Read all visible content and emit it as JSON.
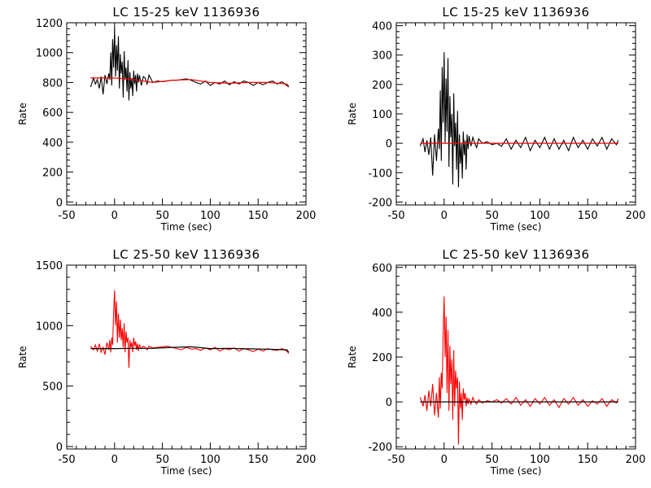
{
  "chart_data": [
    {
      "type": "line",
      "title": "LC 15-25 keV  1136936",
      "xlabel": "Time (sec)",
      "ylabel": "Rate",
      "xlim": [
        -50,
        200
      ],
      "ylim": [
        -20,
        1200
      ],
      "xticks": [
        -50,
        0,
        50,
        100,
        150,
        200
      ],
      "yticks": [
        0,
        200,
        400,
        600,
        800,
        1000,
        1200
      ],
      "grid": false,
      "data_color": "#000000",
      "model_color": "#ff0000",
      "series": [
        {
          "role": "data",
          "x": [
            -25,
            -22,
            -20,
            -18,
            -16,
            -14,
            -12,
            -10,
            -8,
            -6,
            -5,
            -4,
            -3,
            -2,
            -1,
            0,
            1,
            2,
            3,
            4,
            5,
            6,
            7,
            8,
            9,
            10,
            11,
            12,
            13,
            14,
            15,
            16,
            17,
            18,
            19,
            20,
            21,
            22,
            23,
            24,
            25,
            26,
            28,
            30,
            32,
            34,
            36,
            40,
            45,
            50,
            55,
            60,
            65,
            70,
            75,
            80,
            85,
            90,
            95,
            100,
            105,
            110,
            115,
            120,
            125,
            130,
            135,
            140,
            145,
            150,
            155,
            160,
            165,
            170,
            175,
            180,
            182
          ],
          "y": [
            770,
            830,
            790,
            820,
            760,
            840,
            720,
            850,
            790,
            860,
            820,
            1000,
            780,
            1090,
            900,
            1160,
            840,
            1050,
            880,
            1110,
            760,
            990,
            860,
            940,
            700,
            1010,
            820,
            900,
            740,
            950,
            680,
            870,
            760,
            830,
            710,
            880,
            790,
            850,
            740,
            860,
            800,
            850,
            780,
            840,
            830,
            790,
            850,
            800,
            810,
            805,
            810,
            815,
            815,
            820,
            825,
            815,
            800,
            790,
            810,
            780,
            800,
            790,
            810,
            785,
            805,
            790,
            810,
            800,
            780,
            800,
            785,
            800,
            810,
            790,
            805,
            780,
            770
          ]
        },
        {
          "role": "model",
          "x": [
            -25,
            0,
            20,
            40,
            60,
            80,
            100,
            120,
            140,
            160,
            180,
            182
          ],
          "y": [
            830,
            830,
            820,
            800,
            815,
            820,
            800,
            795,
            800,
            800,
            790,
            775
          ]
        }
      ]
    },
    {
      "type": "line",
      "title": "LC 15-25 keV  1136936",
      "xlabel": "Time (sec)",
      "ylabel": "Rate",
      "xlim": [
        -50,
        200
      ],
      "ylim": [
        -210,
        410
      ],
      "xticks": [
        -50,
        0,
        50,
        100,
        150,
        200
      ],
      "yticks": [
        -200,
        -100,
        0,
        100,
        200,
        300,
        400
      ],
      "grid": false,
      "data_color": "#000000",
      "model_color": "#ff0000",
      "series": [
        {
          "role": "data",
          "x": [
            -25,
            -22,
            -20,
            -18,
            -16,
            -14,
            -12,
            -10,
            -8,
            -6,
            -5,
            -4,
            -3,
            -2,
            -1,
            0,
            1,
            2,
            3,
            4,
            5,
            6,
            7,
            8,
            9,
            10,
            11,
            12,
            13,
            14,
            15,
            16,
            17,
            18,
            19,
            20,
            21,
            22,
            23,
            24,
            25,
            26,
            28,
            30,
            32,
            34,
            36,
            40,
            45,
            50,
            55,
            60,
            65,
            70,
            75,
            80,
            85,
            90,
            95,
            100,
            105,
            110,
            115,
            120,
            125,
            130,
            135,
            140,
            145,
            150,
            155,
            160,
            165,
            170,
            175,
            180,
            182
          ],
          "y": [
            -10,
            15,
            -30,
            10,
            -40,
            20,
            -110,
            30,
            -60,
            50,
            -20,
            180,
            -60,
            260,
            70,
            310,
            0,
            220,
            40,
            290,
            -80,
            160,
            20,
            100,
            -140,
            170,
            -10,
            70,
            -90,
            110,
            -150,
            30,
            -70,
            0,
            -120,
            40,
            -40,
            10,
            -90,
            30,
            -20,
            25,
            -10,
            20,
            0,
            -15,
            15,
            0,
            5,
            -5,
            0,
            -10,
            15,
            -20,
            10,
            -15,
            20,
            -25,
            10,
            -15,
            20,
            -20,
            15,
            -20,
            10,
            -25,
            20,
            -15,
            10,
            -20,
            15,
            -10,
            20,
            -20,
            15,
            -5,
            10
          ]
        },
        {
          "role": "model",
          "x": [
            -25,
            182
          ],
          "y": [
            0,
            0
          ]
        }
      ]
    },
    {
      "type": "line",
      "title": "LC 25-50 keV  1136936",
      "xlabel": "Time (sec)",
      "ylabel": "Rate",
      "xlim": [
        -50,
        200
      ],
      "ylim": [
        -20,
        1500
      ],
      "xticks": [
        -50,
        0,
        50,
        100,
        150,
        200
      ],
      "yticks": [
        0,
        500,
        1000,
        1500
      ],
      "grid": false,
      "data_color": "#ff0000",
      "model_color": "#000000",
      "series": [
        {
          "role": "data",
          "x": [
            -25,
            -22,
            -20,
            -18,
            -16,
            -14,
            -12,
            -10,
            -8,
            -6,
            -5,
            -4,
            -3,
            -2,
            -1,
            0,
            1,
            2,
            3,
            4,
            5,
            6,
            7,
            8,
            9,
            10,
            11,
            12,
            13,
            14,
            15,
            16,
            17,
            18,
            19,
            20,
            21,
            22,
            23,
            24,
            25,
            26,
            28,
            30,
            32,
            34,
            36,
            40,
            45,
            50,
            55,
            60,
            65,
            70,
            75,
            80,
            85,
            90,
            95,
            100,
            105,
            110,
            115,
            120,
            125,
            130,
            135,
            140,
            145,
            150,
            155,
            160,
            165,
            170,
            175,
            180,
            182
          ],
          "y": [
            830,
            800,
            840,
            790,
            850,
            780,
            820,
            760,
            860,
            800,
            880,
            780,
            900,
            840,
            1100,
            1290,
            1000,
            1200,
            860,
            1100,
            900,
            1050,
            880,
            980,
            820,
            1020,
            780,
            950,
            860,
            900,
            650,
            880,
            820,
            860,
            780,
            900,
            830,
            870,
            800,
            850,
            790,
            840,
            810,
            830,
            820,
            800,
            830,
            815,
            820,
            825,
            830,
            820,
            810,
            800,
            820,
            805,
            810,
            795,
            815,
            800,
            820,
            790,
            810,
            800,
            815,
            790,
            810,
            800,
            785,
            805,
            790,
            810,
            800,
            795,
            810,
            790,
            770
          ]
        },
        {
          "role": "model",
          "x": [
            -25,
            0,
            20,
            40,
            60,
            80,
            100,
            120,
            140,
            160,
            180,
            182
          ],
          "y": [
            810,
            810,
            812,
            812,
            820,
            825,
            810,
            812,
            808,
            805,
            800,
            780
          ]
        }
      ]
    },
    {
      "type": "line",
      "title": "LC 25-50 keV  1136936",
      "xlabel": "Time (sec)",
      "ylabel": "Rate",
      "xlim": [
        -50,
        200
      ],
      "ylim": [
        -210,
        610
      ],
      "xticks": [
        -50,
        0,
        50,
        100,
        150,
        200
      ],
      "yticks": [
        -200,
        0,
        200,
        400,
        600
      ],
      "grid": false,
      "data_color": "#ff0000",
      "model_color": "#000000",
      "series": [
        {
          "role": "data",
          "x": [
            -25,
            -22,
            -20,
            -18,
            -16,
            -14,
            -12,
            -10,
            -8,
            -6,
            -5,
            -4,
            -3,
            -2,
            -1,
            0,
            1,
            2,
            3,
            4,
            5,
            6,
            7,
            8,
            9,
            10,
            11,
            12,
            13,
            14,
            15,
            16,
            17,
            18,
            19,
            20,
            21,
            22,
            23,
            24,
            25,
            26,
            28,
            30,
            32,
            34,
            36,
            40,
            45,
            50,
            55,
            60,
            65,
            70,
            75,
            80,
            85,
            90,
            95,
            100,
            105,
            110,
            115,
            120,
            125,
            130,
            135,
            140,
            145,
            150,
            155,
            160,
            165,
            170,
            175,
            180,
            182
          ],
          "y": [
            20,
            -20,
            30,
            -40,
            50,
            -20,
            80,
            -60,
            40,
            -70,
            110,
            -30,
            130,
            60,
            300,
            470,
            200,
            380,
            40,
            320,
            -40,
            250,
            80,
            190,
            -80,
            230,
            -20,
            140,
            60,
            110,
            -190,
            90,
            -30,
            40,
            -80,
            60,
            10,
            40,
            -20,
            20,
            -10,
            15,
            -10,
            20,
            0,
            -10,
            10,
            -5,
            5,
            0,
            10,
            -5,
            15,
            -10,
            20,
            -15,
            10,
            -20,
            15,
            -10,
            20,
            -15,
            10,
            -25,
            15,
            -10,
            20,
            -15,
            10,
            -20,
            5,
            -10,
            15,
            -20,
            10,
            -5,
            15
          ]
        },
        {
          "role": "model",
          "x": [
            -25,
            182
          ],
          "y": [
            0,
            0
          ]
        }
      ]
    }
  ]
}
